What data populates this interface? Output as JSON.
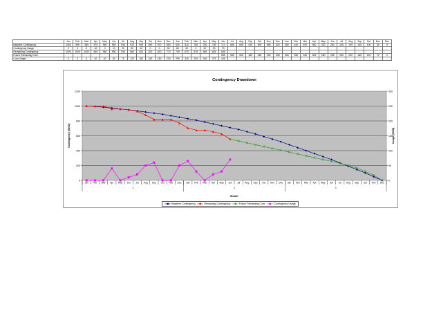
{
  "table": {
    "header_months": [
      "Jan",
      "Feb",
      "Mar",
      "Apr",
      "May",
      "Jun",
      "Jul",
      "Aug",
      "Sep",
      "Oct",
      "Nov",
      "Dec",
      "Jan",
      "Feb",
      "Mar",
      "Apr",
      "May",
      "Jun",
      "Jul",
      "Aug",
      "Sep",
      "Oct",
      "Nov",
      "Dec",
      "Jan",
      "Feb",
      "Mar",
      "Apr",
      "May",
      "Jun",
      "Jul",
      "Aug",
      "Sep",
      "Oct",
      "Nov",
      "Dec"
    ],
    "rows": [
      {
        "label": "Baseline Contingency",
        "cells": [
          "1000",
          "995",
          "985",
          "975",
          "960",
          "950",
          "935",
          "920",
          "905",
          "890",
          "870",
          "850",
          "830",
          "810",
          "785",
          "760",
          "735",
          "710",
          "685",
          "655",
          "625",
          "590",
          "555",
          "520",
          "480",
          "440",
          "400",
          "360",
          "320",
          "280",
          "235",
          "190",
          "145",
          "100",
          "50",
          "0"
        ]
      },
      {
        "label": "Contingency Usage",
        "cells": [
          "0",
          "0",
          "0",
          "40",
          "0",
          "10",
          "20",
          "50",
          "60",
          "0",
          "0",
          "50",
          "65",
          "30",
          "0",
          "20",
          "30",
          "70",
          "",
          "",
          "",
          "",
          "",
          "",
          "",
          "",
          "",
          "",
          "",
          "",
          "",
          "",
          "",
          "",
          "",
          ""
        ]
      },
      {
        "label": "Remaining Contingency",
        "cells": [
          "1000",
          "1000",
          "1000",
          "960",
          "960",
          "950",
          "930",
          "880",
          "820",
          "820",
          "820",
          "770",
          "705",
          "675",
          "675",
          "655",
          "625",
          "555",
          "",
          "",
          "",
          "",
          "",
          "",
          "",
          "",
          "",
          "",
          "",
          "",
          "",
          "",
          "",
          "",
          "",
          ""
        ]
      },
      {
        "label": "Future Remaining Cont.",
        "cells": [
          "",
          "",
          "",
          "",
          "",
          "",
          "",
          "",
          "",
          "",
          "",
          "",
          "",
          "",
          "",
          "",
          "",
          "555",
          "530",
          "505",
          "480",
          "455",
          "430",
          "405",
          "380",
          "355",
          "330",
          "305",
          "280",
          "255",
          "230",
          "200",
          "165",
          "120",
          "70",
          "0"
        ]
      },
      {
        "label": "Cum Usage",
        "cells": [
          "0",
          "0",
          "0",
          "40",
          "40",
          "50",
          "70",
          "120",
          "180",
          "180",
          "180",
          "230",
          "295",
          "325",
          "325",
          "345",
          "375",
          "445",
          "",
          "",
          "",
          "",
          "",
          "",
          "",
          "",
          "",
          "",
          "",
          "",
          "",
          "",
          "",
          "",
          "",
          ""
        ]
      }
    ]
  },
  "chart_data": {
    "type": "line",
    "title": "Contingency Drawdown",
    "xlabel": "Month",
    "ylabel": "Contingency ($000)",
    "y2label": "Usage ($000)",
    "ylim": [
      0,
      1200
    ],
    "y2lim": [
      0,
      300
    ],
    "yticks": [
      0,
      200,
      400,
      600,
      800,
      1000,
      1200
    ],
    "y2ticks": [
      0,
      50,
      100,
      150,
      200,
      250,
      300
    ],
    "categories": [
      "Jan",
      "Feb",
      "Mar",
      "Apr",
      "May",
      "Jun",
      "Jul",
      "Aug",
      "Sep",
      "Oct",
      "Nov",
      "Dec",
      "Jan",
      "Feb",
      "Mar",
      "Apr",
      "May",
      "Jun",
      "Jul",
      "Aug",
      "Sep",
      "Oct",
      "Nov",
      "Dec",
      "Jan",
      "Feb",
      "Mar",
      "Apr",
      "May",
      "Jun",
      "Jul",
      "Aug",
      "Sep",
      "Oct",
      "Nov",
      "Dec"
    ],
    "groups": [
      "1",
      "2",
      "3"
    ],
    "grid": true,
    "legend_position": "bottom",
    "series": [
      {
        "name": "Baseline Contingency",
        "axis": "left",
        "color": "#000080",
        "marker": "diamond",
        "values": [
          1000,
          995,
          985,
          975,
          960,
          950,
          935,
          920,
          905,
          890,
          870,
          850,
          830,
          810,
          785,
          760,
          735,
          710,
          685,
          655,
          625,
          590,
          555,
          520,
          480,
          440,
          400,
          360,
          320,
          280,
          235,
          190,
          145,
          100,
          50,
          0
        ]
      },
      {
        "name": "Remaining Contingency",
        "axis": "left",
        "color": "#ff0000",
        "marker": "triangle",
        "values": [
          1000,
          1000,
          1000,
          960,
          960,
          950,
          930,
          880,
          820,
          820,
          820,
          770,
          705,
          675,
          675,
          655,
          625,
          555,
          null,
          null,
          null,
          null,
          null,
          null,
          null,
          null,
          null,
          null,
          null,
          null,
          null,
          null,
          null,
          null,
          null,
          null
        ]
      },
      {
        "name": "Future Remaining Cont.",
        "axis": "left",
        "color": "#339933",
        "marker": "x",
        "values": [
          null,
          null,
          null,
          null,
          null,
          null,
          null,
          null,
          null,
          null,
          null,
          null,
          null,
          null,
          null,
          null,
          null,
          555,
          530,
          505,
          480,
          455,
          430,
          405,
          380,
          355,
          330,
          305,
          280,
          255,
          230,
          200,
          165,
          120,
          70,
          0
        ]
      },
      {
        "name": "Contingency Usage",
        "axis": "right",
        "color": "#ff00ff",
        "marker": "square",
        "values": [
          0,
          0,
          0,
          40,
          0,
          10,
          20,
          50,
          60,
          0,
          0,
          50,
          65,
          30,
          0,
          20,
          30,
          70,
          null,
          null,
          null,
          null,
          null,
          null,
          null,
          null,
          null,
          null,
          null,
          null,
          null,
          null,
          null,
          null,
          null,
          null
        ]
      }
    ]
  }
}
